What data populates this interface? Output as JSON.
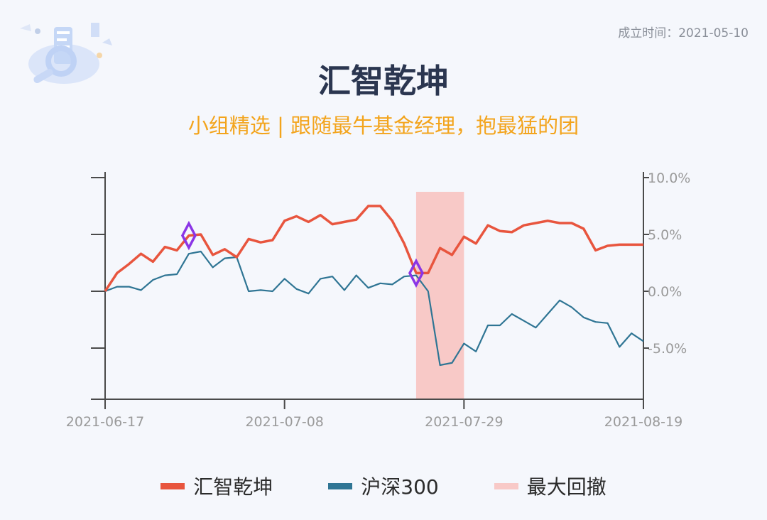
{
  "header": {
    "founded": "成立时间：2021-05-10",
    "title": "汇智乾坤",
    "subtitle": "小组精选 | 跟随最牛基金经理，抱最猛的团"
  },
  "chart_data": {
    "type": "line",
    "x": [
      "2021-06-17",
      "2021-06-18",
      "2021-06-21",
      "2021-06-22",
      "2021-06-23",
      "2021-06-24",
      "2021-06-25",
      "2021-06-28",
      "2021-06-29",
      "2021-06-30",
      "2021-07-01",
      "2021-07-02",
      "2021-07-05",
      "2021-07-06",
      "2021-07-07",
      "2021-07-08",
      "2021-07-09",
      "2021-07-12",
      "2021-07-13",
      "2021-07-14",
      "2021-07-15",
      "2021-07-16",
      "2021-07-19",
      "2021-07-20",
      "2021-07-21",
      "2021-07-22",
      "2021-07-23",
      "2021-07-26",
      "2021-07-27",
      "2021-07-28",
      "2021-07-29",
      "2021-07-30",
      "2021-08-02",
      "2021-08-03",
      "2021-08-04",
      "2021-08-05",
      "2021-08-06",
      "2021-08-09",
      "2021-08-10",
      "2021-08-11",
      "2021-08-12",
      "2021-08-13",
      "2021-08-16",
      "2021-08-17",
      "2021-08-18",
      "2021-08-19"
    ],
    "x_ticks": [
      "2021-06-17",
      "2021-07-08",
      "2021-07-29",
      "2021-08-19"
    ],
    "series": [
      {
        "name": "汇智乾坤",
        "color": "#e8553e",
        "values": [
          0.0,
          1.6,
          2.4,
          3.3,
          2.6,
          3.9,
          3.6,
          4.9,
          5.0,
          3.2,
          3.7,
          3.0,
          4.6,
          4.3,
          4.5,
          6.2,
          6.6,
          6.1,
          6.7,
          5.9,
          6.1,
          6.3,
          7.5,
          7.5,
          6.2,
          4.2,
          1.6,
          1.6,
          3.8,
          3.2,
          4.8,
          4.2,
          5.8,
          5.3,
          5.2,
          5.8,
          6.0,
          6.2,
          6.0,
          6.0,
          5.5,
          3.6,
          4.0,
          4.1,
          4.1,
          4.1
        ]
      },
      {
        "name": "沪深300",
        "color": "#2f7594",
        "values": [
          0.0,
          0.4,
          0.4,
          0.1,
          1.0,
          1.4,
          1.5,
          3.3,
          3.5,
          2.1,
          2.9,
          3.0,
          0.0,
          0.1,
          0.0,
          1.1,
          0.2,
          -0.2,
          1.1,
          1.3,
          0.1,
          1.4,
          0.3,
          0.7,
          0.6,
          1.3,
          1.4,
          0.0,
          -6.5,
          -6.3,
          -4.6,
          -5.3,
          -3.0,
          -3.0,
          -2.0,
          -2.6,
          -3.2,
          -2.0,
          -0.8,
          -1.4,
          -2.3,
          -2.7,
          -2.8,
          -4.9,
          -3.7,
          -4.4
        ]
      }
    ],
    "max_drawdown": {
      "name": "最大回撤",
      "color": "#f8c9c7",
      "from": "2021-07-23",
      "to": "2021-07-29"
    },
    "markers": [
      {
        "series": "汇智乾坤",
        "x": "2021-06-28",
        "color": "#8b35e6"
      },
      {
        "series": "汇智乾坤",
        "x": "2021-07-23",
        "color": "#8b35e6"
      }
    ],
    "y_ticks": [
      "10.0%",
      "5.0%",
      "0.0%",
      "-5.0%"
    ],
    "y_tick_values": [
      10,
      5,
      0,
      -5
    ],
    "ylim": [
      -9.5,
      10.5
    ]
  }
}
